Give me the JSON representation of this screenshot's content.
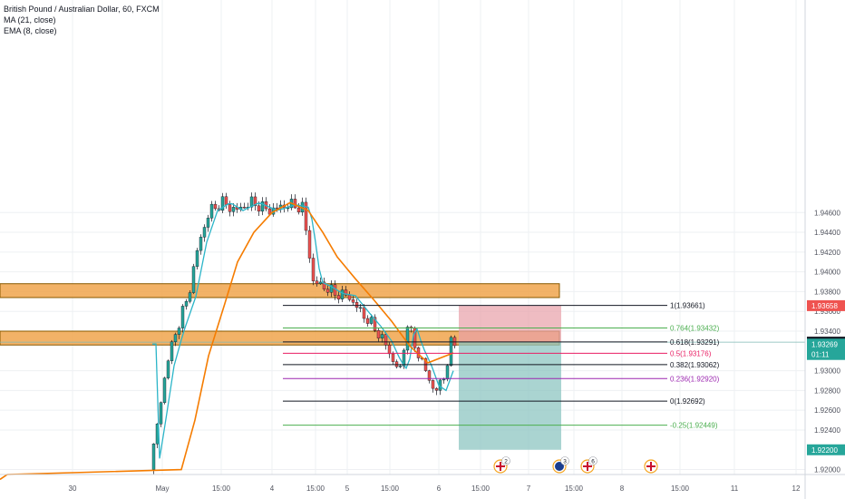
{
  "legend": {
    "symbol": "British Pound / Australian Dollar, 60, FXCM",
    "ma": "MA (21, close)",
    "ema": "EMA (8, close)"
  },
  "colors": {
    "background": "#ffffff",
    "grid": "#eef0f3",
    "up": "#26a69a",
    "down": "#ef5350",
    "ma_line": "#2bb5c8",
    "ema_line": "#f57c00",
    "zone_fill": "#f0a44c",
    "zone_border": "#8a5a00",
    "stop_fill": "#e8a0a8",
    "target_fill": "#8ec5c2",
    "axis_text": "#50535e"
  },
  "chart_data": {
    "type": "candlestick",
    "ylim": [
      1.9195,
      1.9675
    ],
    "y_ticks": [
      "1.94600",
      "1.94400",
      "1.94200",
      "1.94000",
      "1.93800",
      "1.93600",
      "1.93400",
      "1.93000",
      "1.92800",
      "1.92600",
      "1.92400",
      "1.92000"
    ],
    "x_ticks": [
      "30",
      "May",
      "15:00",
      "4",
      "15:00",
      "5",
      "15:00",
      "6",
      "15:00",
      "7",
      "15:00",
      "8",
      "15:00",
      "11",
      "12"
    ],
    "price_badges": [
      {
        "label": "1.93658",
        "value": 1.93658,
        "color": "#ef5350"
      },
      {
        "label": "1.93289",
        "value": 1.93289,
        "color": "#131722"
      },
      {
        "label": "1.93269",
        "value": 1.93269,
        "color": "#26a69a"
      },
      {
        "label": "01:11",
        "value": 1.93164,
        "color": "#26a69a"
      },
      {
        "label": "1.92200",
        "value": 1.922,
        "color": "#26a69a"
      }
    ],
    "fib_levels": [
      {
        "ratio": "1",
        "price": "1.93661",
        "value": 1.93661,
        "color": "#131722"
      },
      {
        "ratio": "0.764",
        "price": "1.93432",
        "value": 1.93432,
        "color": "#4caf50"
      },
      {
        "ratio": "0.618",
        "price": "1.93291",
        "value": 1.93291,
        "color": "#131722"
      },
      {
        "ratio": "0.5",
        "price": "1.93176",
        "value": 1.93176,
        "color": "#e91e63"
      },
      {
        "ratio": "0.382",
        "price": "1.93062",
        "value": 1.93062,
        "color": "#131722"
      },
      {
        "ratio": "0.236",
        "price": "1.92920",
        "value": 1.9292,
        "color": "#9c27b0"
      },
      {
        "ratio": "0",
        "price": "1.92692",
        "value": 1.92692,
        "color": "#131722"
      },
      {
        "ratio": "-0.25",
        "price": "1.92449",
        "value": 1.92449,
        "color": "#4caf50"
      }
    ],
    "zones": [
      {
        "top": 1.9388,
        "bottom": 1.9374
      },
      {
        "top": 1.934,
        "bottom": 1.9326
      }
    ],
    "position": {
      "entry": 1.93289,
      "stop": 1.93658,
      "target": 1.922
    },
    "events": [
      {
        "flag": "uk",
        "count": "2"
      },
      {
        "flag": "au",
        "count": "3"
      },
      {
        "flag": "uk",
        "count": "6"
      },
      {
        "flag": "uk",
        "count": ""
      }
    ]
  }
}
